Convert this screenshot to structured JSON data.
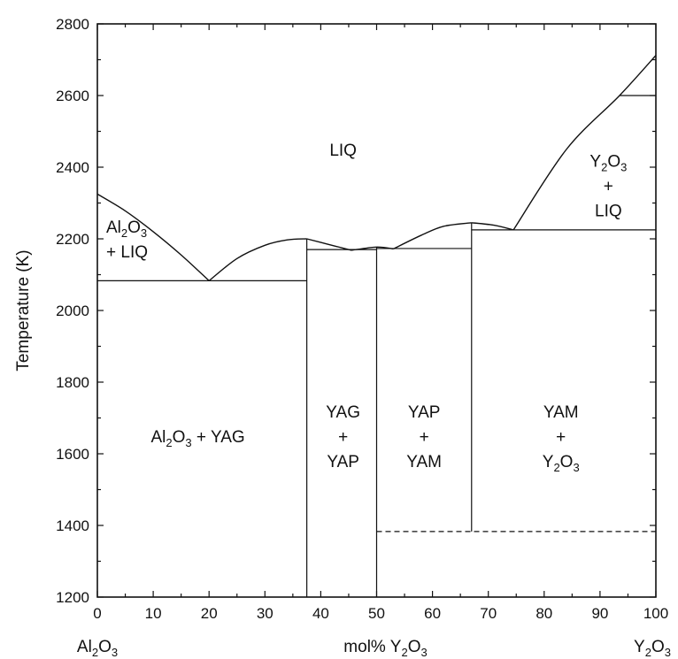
{
  "chart_data": {
    "type": "phase-diagram",
    "title": "",
    "xlabel": "mol% Y2O3",
    "ylabel": "Temperature (K)",
    "x_end_labels": {
      "left": "Al2O3",
      "right": "Y2O3"
    },
    "xlim": [
      0,
      100
    ],
    "ylim": [
      1200,
      2800
    ],
    "x_ticks": [
      0,
      10,
      20,
      30,
      40,
      50,
      60,
      70,
      80,
      90,
      100
    ],
    "y_ticks": [
      1200,
      1400,
      1600,
      1800,
      2000,
      2200,
      2400,
      2600,
      2800
    ],
    "line_color": "#111111",
    "liquidus_segments": [
      {
        "name": "Al2O3 liquidus",
        "points": [
          [
            0,
            2325
          ],
          [
            5,
            2278
          ],
          [
            10,
            2220
          ],
          [
            15,
            2155
          ],
          [
            20,
            2083
          ]
        ]
      },
      {
        "name": "YAG liquidus left",
        "points": [
          [
            20,
            2083
          ],
          [
            25,
            2145
          ],
          [
            30,
            2182
          ],
          [
            34,
            2197
          ],
          [
            37.5,
            2200
          ]
        ]
      },
      {
        "name": "YAG liquidus right",
        "points": [
          [
            37.5,
            2200
          ],
          [
            41,
            2186
          ],
          [
            45.5,
            2168
          ]
        ]
      },
      {
        "name": "YAP liquidus left",
        "points": [
          [
            45.5,
            2168
          ],
          [
            50,
            2177
          ],
          [
            53,
            2172
          ]
        ]
      },
      {
        "name": "YAM liquidus left",
        "points": [
          [
            53,
            2172
          ],
          [
            58,
            2210
          ],
          [
            62,
            2235
          ],
          [
            67,
            2245
          ]
        ]
      },
      {
        "name": "YAM liquidus right",
        "points": [
          [
            67,
            2245
          ],
          [
            71,
            2238
          ],
          [
            74.5,
            2225
          ]
        ]
      },
      {
        "name": "Y2O3 liquidus",
        "points": [
          [
            74.5,
            2225
          ],
          [
            84,
            2450
          ],
          [
            93.5,
            2600
          ],
          [
            100,
            2712
          ]
        ]
      }
    ],
    "solid_lines": [
      {
        "name": "Al2O3-YAG eutectic",
        "points": [
          [
            0,
            2083
          ],
          [
            37.5,
            2083
          ]
        ]
      },
      {
        "name": "YAG-YAP eutectic",
        "points": [
          [
            37.5,
            2170
          ],
          [
            50,
            2170
          ]
        ]
      },
      {
        "name": "YAP-YAM eutectic",
        "points": [
          [
            50,
            2173
          ],
          [
            67,
            2173
          ]
        ]
      },
      {
        "name": "YAM-Y2O3 eutectic",
        "points": [
          [
            67,
            2225
          ],
          [
            100,
            2225
          ]
        ]
      },
      {
        "name": "Y2O3 transition",
        "points": [
          [
            93.5,
            2600
          ],
          [
            100,
            2600
          ]
        ]
      },
      {
        "name": "YAG line",
        "points": [
          [
            37.5,
            1200
          ],
          [
            37.5,
            2200
          ]
        ]
      },
      {
        "name": "YAP line",
        "points": [
          [
            50,
            1200
          ],
          [
            50,
            2177
          ]
        ]
      },
      {
        "name": "YAM line",
        "points": [
          [
            67,
            1383
          ],
          [
            67,
            2245
          ]
        ]
      }
    ],
    "dashed_lines": [
      {
        "name": "YAM decomposition",
        "points": [
          [
            50,
            1383
          ],
          [
            100,
            1383
          ]
        ]
      }
    ],
    "region_labels": [
      {
        "name": "liq",
        "lines": [
          "LIQ"
        ],
        "at": [
          44,
          2450
        ]
      },
      {
        "name": "al2o3-liq",
        "lines": [
          "Al2O3",
          "+ LIQ"
        ],
        "at": [
          4,
          2200
        ]
      },
      {
        "name": "al2o3-yag",
        "lines": [
          "Al2O3 + YAG"
        ],
        "at": [
          18,
          1650
        ]
      },
      {
        "name": "yag-yap",
        "lines": [
          "YAG",
          "+",
          "YAP"
        ],
        "at": [
          44,
          1650
        ]
      },
      {
        "name": "yap-yam",
        "lines": [
          "YAP",
          "+",
          "YAM"
        ],
        "at": [
          58.5,
          1650
        ]
      },
      {
        "name": "yam-y2o3",
        "lines": [
          "YAM",
          "+",
          "Y2O3"
        ],
        "at": [
          83,
          1650
        ]
      },
      {
        "name": "y2o3-liq",
        "lines": [
          "Y2O3",
          "+",
          "LIQ"
        ],
        "at": [
          91.5,
          2350
        ]
      }
    ]
  }
}
